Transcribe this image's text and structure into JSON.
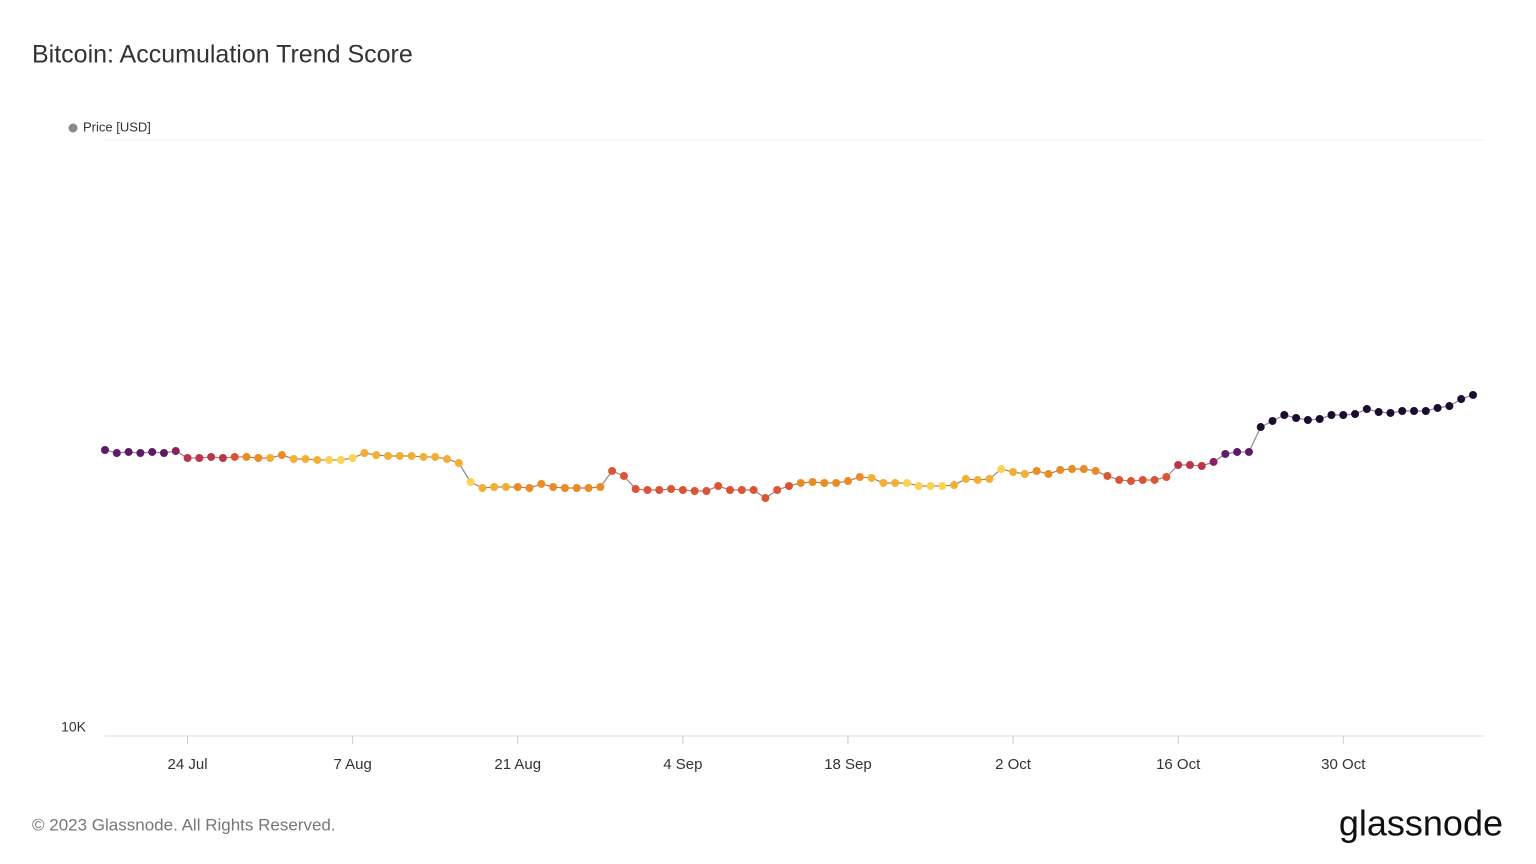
{
  "chart_data": {
    "type": "line",
    "title": "Bitcoin: Accumulation Trend Score",
    "x": [
      "17 Jul",
      "18 Jul",
      "19 Jul",
      "20 Jul",
      "21 Jul",
      "22 Jul",
      "23 Jul",
      "24 Jul",
      "25 Jul",
      "26 Jul",
      "27 Jul",
      "28 Jul",
      "29 Jul",
      "30 Jul",
      "31 Jul",
      "1 Aug",
      "2 Aug",
      "3 Aug",
      "4 Aug",
      "5 Aug",
      "6 Aug",
      "7 Aug",
      "8 Aug",
      "9 Aug",
      "10 Aug",
      "11 Aug",
      "12 Aug",
      "13 Aug",
      "14 Aug",
      "15 Aug",
      "16 Aug",
      "17 Aug",
      "18 Aug",
      "19 Aug",
      "20 Aug",
      "21 Aug",
      "22 Aug",
      "23 Aug",
      "24 Aug",
      "25 Aug",
      "26 Aug",
      "27 Aug",
      "28 Aug",
      "29 Aug",
      "30 Aug",
      "31 Aug",
      "1 Sep",
      "2 Sep",
      "3 Sep",
      "4 Sep",
      "5 Sep",
      "6 Sep",
      "7 Sep",
      "8 Sep",
      "9 Sep",
      "10 Sep",
      "11 Sep",
      "12 Sep",
      "13 Sep",
      "14 Sep",
      "15 Sep",
      "16 Sep",
      "17 Sep",
      "18 Sep",
      "19 Sep",
      "20 Sep",
      "21 Sep",
      "22 Sep",
      "23 Sep",
      "24 Sep",
      "25 Sep",
      "26 Sep",
      "27 Sep",
      "28 Sep",
      "29 Sep",
      "30 Sep",
      "1 Oct",
      "2 Oct",
      "3 Oct",
      "4 Oct",
      "5 Oct",
      "6 Oct",
      "7 Oct",
      "8 Oct",
      "9 Oct",
      "10 Oct",
      "11 Oct",
      "12 Oct",
      "13 Oct",
      "14 Oct",
      "15 Oct",
      "16 Oct",
      "17 Oct",
      "18 Oct",
      "19 Oct",
      "20 Oct",
      "21 Oct",
      "22 Oct",
      "23 Oct",
      "24 Oct",
      "25 Oct",
      "26 Oct",
      "27 Oct",
      "28 Oct",
      "29 Oct",
      "30 Oct",
      "31 Oct",
      "1 Nov",
      "2 Nov",
      "3 Nov",
      "4 Nov",
      "5 Nov",
      "6 Nov",
      "7 Nov",
      "8 Nov",
      "9 Nov",
      "10 Nov"
    ],
    "series": [
      {
        "name": "Price [USD]",
        "color": "#8a8a8a",
        "values": [
          30130,
          29780,
          29900,
          29780,
          29900,
          29780,
          30010,
          29210,
          29210,
          29330,
          29210,
          29330,
          29330,
          29210,
          29210,
          29550,
          29100,
          29100,
          28990,
          28990,
          28990,
          29210,
          29780,
          29550,
          29440,
          29440,
          29440,
          29330,
          29330,
          29100,
          28650,
          26620,
          26010,
          26110,
          26110,
          26110,
          26010,
          26420,
          26110,
          26010,
          26010,
          26010,
          26110,
          27780,
          27250,
          25910,
          25810,
          25810,
          25910,
          25810,
          25710,
          25710,
          26210,
          25810,
          25810,
          25810,
          25020,
          25810,
          26210,
          26520,
          26620,
          26520,
          26520,
          26720,
          27140,
          27040,
          26520,
          26520,
          26520,
          26210,
          26210,
          26210,
          26310,
          26940,
          26830,
          26940,
          27990,
          27670,
          27460,
          27780,
          27460,
          27890,
          27990,
          27990,
          27780,
          27250,
          26830,
          26720,
          26830,
          26830,
          27140,
          28430,
          28430,
          28320,
          28770,
          29670,
          29900,
          29900,
          32930,
          33710,
          34500,
          34100,
          33840,
          33970,
          34500,
          34500,
          34630,
          35310,
          34900,
          34770,
          35040,
          35040,
          35040,
          35450,
          35720,
          36700,
          37280
        ],
        "point_colors": [
          "#5e1a66",
          "#5e1a66",
          "#5e1a66",
          "#5e1a66",
          "#5e1a66",
          "#5e1a66",
          "#8c1f5e",
          "#c0344a",
          "#c0344a",
          "#c0344a",
          "#c0344a",
          "#e05232",
          "#f08a1c",
          "#f08a1c",
          "#f6ae2d",
          "#f08a1c",
          "#f6ae2d",
          "#f6ae2d",
          "#f6ae2d",
          "#fcd34d",
          "#fcd34d",
          "#fcd34d",
          "#f6ae2d",
          "#f6ae2d",
          "#f6ae2d",
          "#f6ae2d",
          "#f6ae2d",
          "#f6ae2d",
          "#f6ae2d",
          "#f6ae2d",
          "#f6ae2d",
          "#fcd34d",
          "#f6ae2d",
          "#f6ae2d",
          "#f6ae2d",
          "#f08a1c",
          "#f08a1c",
          "#f08a1c",
          "#f08a1c",
          "#f08a1c",
          "#f08a1c",
          "#f08a1c",
          "#f08a1c",
          "#e05232",
          "#e05232",
          "#e05232",
          "#e05232",
          "#e05232",
          "#e05232",
          "#e05232",
          "#e05232",
          "#e05232",
          "#e05232",
          "#e05232",
          "#e05232",
          "#e05232",
          "#e05232",
          "#e05232",
          "#e05232",
          "#f08a1c",
          "#f08a1c",
          "#f08a1c",
          "#f08a1c",
          "#f08a1c",
          "#f08a1c",
          "#f6ae2d",
          "#f6ae2d",
          "#f6ae2d",
          "#fcd34d",
          "#fcd34d",
          "#fcd34d",
          "#fcd34d",
          "#f6ae2d",
          "#f6ae2d",
          "#f6ae2d",
          "#f6ae2d",
          "#fcd34d",
          "#f6ae2d",
          "#f6ae2d",
          "#f08a1c",
          "#f08a1c",
          "#f08a1c",
          "#f08a1c",
          "#f08a1c",
          "#f08a1c",
          "#e05232",
          "#e05232",
          "#e05232",
          "#e05232",
          "#e05232",
          "#e05232",
          "#c0344a",
          "#c0344a",
          "#c0344a",
          "#8c1f5e",
          "#5e1a66",
          "#5e1a66",
          "#5e1a66",
          "#1c0b33",
          "#1c0b33",
          "#1c0b33",
          "#1c0b33",
          "#1c0b33",
          "#1c0b33",
          "#1c0b33",
          "#1c0b33",
          "#1c0b33",
          "#1c0b33",
          "#1c0b33",
          "#1c0b33",
          "#1c0b33",
          "#1c0b33",
          "#1c0b33",
          "#1c0b33",
          "#1c0b33",
          "#1c0b33",
          "#1c0b33"
        ]
      }
    ],
    "xticks": [
      "24 Jul",
      "7 Aug",
      "21 Aug",
      "4 Sep",
      "18 Sep",
      "2 Oct",
      "16 Oct",
      "30 Oct"
    ],
    "ylim": [
      10000,
      100000
    ],
    "yticks": [
      {
        "value": 10000,
        "label": "10K"
      }
    ],
    "log_y": true,
    "legend": "top-left"
  },
  "footer": "© 2023 Glassnode. All Rights Reserved.",
  "logo": "glassnode"
}
